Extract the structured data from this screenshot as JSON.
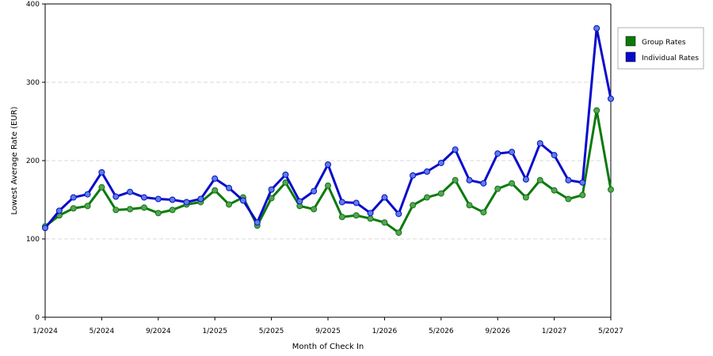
{
  "chart_data": {
    "type": "line",
    "title": "",
    "xlabel": "Month of Check In",
    "ylabel": "Lowest Average Rate (EUR)",
    "ylim": [
      0,
      400
    ],
    "yticks": [
      0,
      100,
      200,
      300,
      400
    ],
    "grid": {
      "horizontal": true,
      "style": "dashed"
    },
    "legend_position": "top-right",
    "x": [
      "1/2024",
      "2/2024",
      "3/2024",
      "4/2024",
      "5/2024",
      "6/2024",
      "7/2024",
      "8/2024",
      "9/2024",
      "10/2024",
      "11/2024",
      "12/2024",
      "1/2025",
      "2/2025",
      "3/2025",
      "4/2025",
      "5/2025",
      "6/2025",
      "7/2025",
      "8/2025",
      "9/2025",
      "10/2025",
      "11/2025",
      "12/2025",
      "1/2026",
      "2/2026",
      "3/2026",
      "4/2026",
      "5/2026",
      "6/2026",
      "7/2026",
      "8/2026",
      "9/2026",
      "10/2026",
      "11/2026",
      "12/2026",
      "1/2027",
      "2/2027",
      "3/2027",
      "4/2027",
      "5/2027"
    ],
    "xticks": [
      "1/2024",
      "5/2024",
      "9/2024",
      "1/2025",
      "5/2025",
      "9/2025",
      "1/2026",
      "5/2026",
      "9/2026",
      "1/2027",
      "5/2027"
    ],
    "series": [
      {
        "name": "Group Rates",
        "color": "#0a7a0a",
        "marker_color": "#5aa05a",
        "values": [
          116,
          130,
          139,
          142,
          166,
          137,
          138,
          140,
          133,
          137,
          144,
          147,
          162,
          144,
          153,
          117,
          152,
          172,
          142,
          138,
          168,
          128,
          130,
          126,
          121,
          108,
          143,
          153,
          158,
          175,
          143,
          134,
          164,
          171,
          153,
          175,
          162,
          151,
          156,
          264,
          163
        ]
      },
      {
        "name": "Individual Rates",
        "color": "#0a0acc",
        "marker_color": "#5a80e0",
        "values": [
          114,
          136,
          153,
          157,
          185,
          154,
          160,
          153,
          151,
          150,
          147,
          151,
          177,
          165,
          149,
          121,
          163,
          182,
          148,
          161,
          195,
          147,
          146,
          133,
          153,
          132,
          181,
          186,
          197,
          214,
          175,
          171,
          209,
          211,
          176,
          222,
          207,
          175,
          172,
          369,
          279
        ]
      }
    ]
  }
}
